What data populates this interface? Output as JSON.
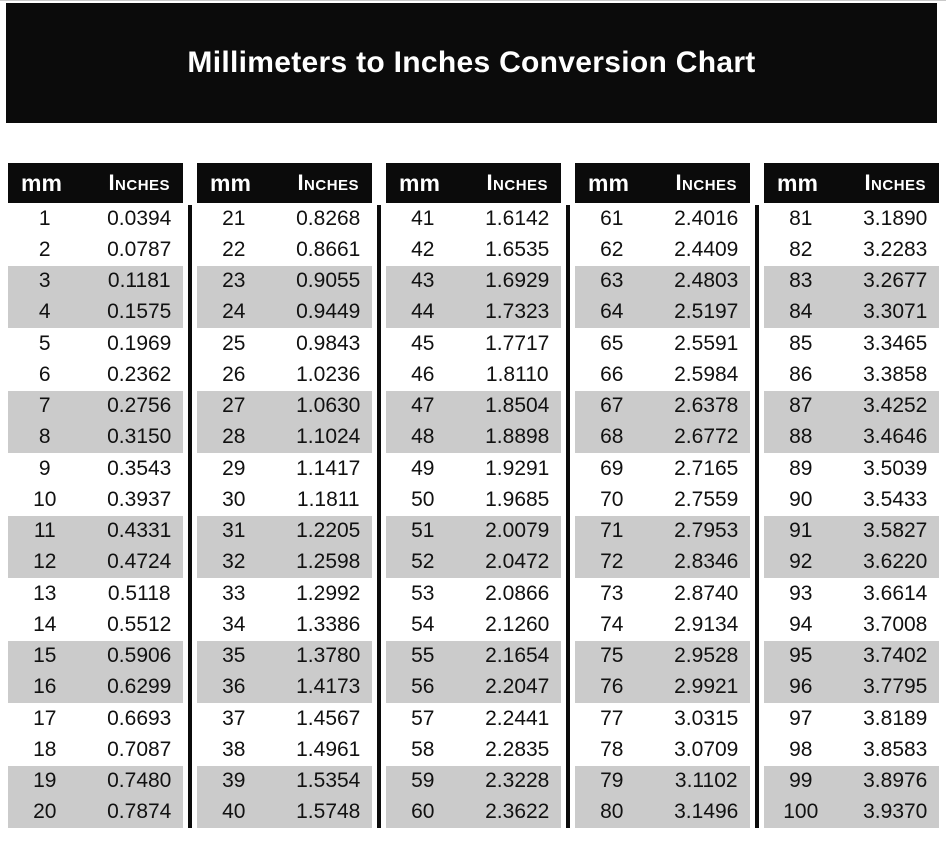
{
  "title": "Millimeters to Inches Conversion Chart",
  "colors": {
    "banner_bg": "#0b0b0b",
    "header_bg": "#0b0b0b",
    "stripe": "#cbcbcb",
    "title_text": "#ffffff",
    "body_text": "#111111"
  },
  "table": {
    "header_mm": "mm",
    "header_inches": "Inches",
    "groups": [
      {
        "rows": [
          [
            "1",
            "0.0394"
          ],
          [
            "2",
            "0.0787"
          ],
          [
            "3",
            "0.1181"
          ],
          [
            "4",
            "0.1575"
          ],
          [
            "5",
            "0.1969"
          ],
          [
            "6",
            "0.2362"
          ],
          [
            "7",
            "0.2756"
          ],
          [
            "8",
            "0.3150"
          ],
          [
            "9",
            "0.3543"
          ],
          [
            "10",
            "0.3937"
          ],
          [
            "11",
            "0.4331"
          ],
          [
            "12",
            "0.4724"
          ],
          [
            "13",
            "0.5118"
          ],
          [
            "14",
            "0.5512"
          ],
          [
            "15",
            "0.5906"
          ],
          [
            "16",
            "0.6299"
          ],
          [
            "17",
            "0.6693"
          ],
          [
            "18",
            "0.7087"
          ],
          [
            "19",
            "0.7480"
          ],
          [
            "20",
            "0.7874"
          ]
        ]
      },
      {
        "rows": [
          [
            "21",
            "0.8268"
          ],
          [
            "22",
            "0.8661"
          ],
          [
            "23",
            "0.9055"
          ],
          [
            "24",
            "0.9449"
          ],
          [
            "25",
            "0.9843"
          ],
          [
            "26",
            "1.0236"
          ],
          [
            "27",
            "1.0630"
          ],
          [
            "28",
            "1.1024"
          ],
          [
            "29",
            "1.1417"
          ],
          [
            "30",
            "1.1811"
          ],
          [
            "31",
            "1.2205"
          ],
          [
            "32",
            "1.2598"
          ],
          [
            "33",
            "1.2992"
          ],
          [
            "34",
            "1.3386"
          ],
          [
            "35",
            "1.3780"
          ],
          [
            "36",
            "1.4173"
          ],
          [
            "37",
            "1.4567"
          ],
          [
            "38",
            "1.4961"
          ],
          [
            "39",
            "1.5354"
          ],
          [
            "40",
            "1.5748"
          ]
        ]
      },
      {
        "rows": [
          [
            "41",
            "1.6142"
          ],
          [
            "42",
            "1.6535"
          ],
          [
            "43",
            "1.6929"
          ],
          [
            "44",
            "1.7323"
          ],
          [
            "45",
            "1.7717"
          ],
          [
            "46",
            "1.8110"
          ],
          [
            "47",
            "1.8504"
          ],
          [
            "48",
            "1.8898"
          ],
          [
            "49",
            "1.9291"
          ],
          [
            "50",
            "1.9685"
          ],
          [
            "51",
            "2.0079"
          ],
          [
            "52",
            "2.0472"
          ],
          [
            "53",
            "2.0866"
          ],
          [
            "54",
            "2.1260"
          ],
          [
            "55",
            "2.1654"
          ],
          [
            "56",
            "2.2047"
          ],
          [
            "57",
            "2.2441"
          ],
          [
            "58",
            "2.2835"
          ],
          [
            "59",
            "2.3228"
          ],
          [
            "60",
            "2.3622"
          ]
        ]
      },
      {
        "rows": [
          [
            "61",
            "2.4016"
          ],
          [
            "62",
            "2.4409"
          ],
          [
            "63",
            "2.4803"
          ],
          [
            "64",
            "2.5197"
          ],
          [
            "65",
            "2.5591"
          ],
          [
            "66",
            "2.5984"
          ],
          [
            "67",
            "2.6378"
          ],
          [
            "68",
            "2.6772"
          ],
          [
            "69",
            "2.7165"
          ],
          [
            "70",
            "2.7559"
          ],
          [
            "71",
            "2.7953"
          ],
          [
            "72",
            "2.8346"
          ],
          [
            "73",
            "2.8740"
          ],
          [
            "74",
            "2.9134"
          ],
          [
            "75",
            "2.9528"
          ],
          [
            "76",
            "2.9921"
          ],
          [
            "77",
            "3.0315"
          ],
          [
            "78",
            "3.0709"
          ],
          [
            "79",
            "3.1102"
          ],
          [
            "80",
            "3.1496"
          ]
        ]
      },
      {
        "rows": [
          [
            "81",
            "3.1890"
          ],
          [
            "82",
            "3.2283"
          ],
          [
            "83",
            "3.2677"
          ],
          [
            "84",
            "3.3071"
          ],
          [
            "85",
            "3.3465"
          ],
          [
            "86",
            "3.3858"
          ],
          [
            "87",
            "3.4252"
          ],
          [
            "88",
            "3.4646"
          ],
          [
            "89",
            "3.5039"
          ],
          [
            "90",
            "3.5433"
          ],
          [
            "91",
            "3.5827"
          ],
          [
            "92",
            "3.6220"
          ],
          [
            "93",
            "3.6614"
          ],
          [
            "94",
            "3.7008"
          ],
          [
            "95",
            "3.7402"
          ],
          [
            "96",
            "3.7795"
          ],
          [
            "97",
            "3.8189"
          ],
          [
            "98",
            "3.8583"
          ],
          [
            "99",
            "3.8976"
          ],
          [
            "100",
            "3.9370"
          ]
        ]
      }
    ]
  }
}
